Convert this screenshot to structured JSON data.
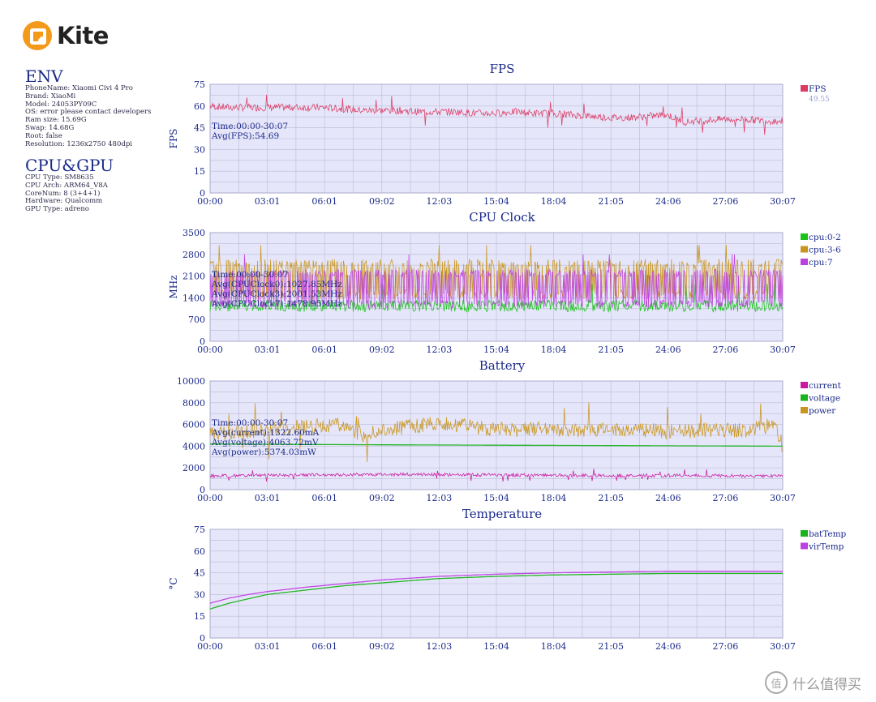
{
  "app": {
    "name": "Kite"
  },
  "env": {
    "title": "ENV",
    "lines": [
      "PhoneName: Xiaomi Civi 4 Pro",
      "Brand: XiaoMi",
      "Model: 24053PY09C",
      "OS: error please contact developers",
      "Ram size: 15.69G",
      "Swap: 14.68G",
      "Root: false",
      "Resolution: 1236x2750 480dpi"
    ]
  },
  "cpugpu": {
    "title": "CPU&GPU",
    "lines": [
      "CPU Type: SM8635",
      "CPU Arch: ARM64_V8A",
      "CoreNum: 8 (3+4+1)",
      "Hardware: Qualcomm",
      "GPU Type: adreno"
    ]
  },
  "watermark": {
    "text": "什么值得买",
    "icon": "zhi-icon"
  },
  "colors": {
    "plot_bg": "#e6e6fa",
    "grid": "#b9b9d8",
    "axis_text": "#1b2a8a",
    "fps": "#dc3c64",
    "cpu02": "#19c319",
    "cpu36": "#c8961e",
    "cpu7": "#bf40e0",
    "current": "#c819a0",
    "voltage": "#19b419",
    "power": "#c8961e",
    "batTemp": "#19b419",
    "virTemp": "#bf40e0"
  },
  "chart_data": [
    {
      "type": "line",
      "title": "FPS",
      "ylabel": "FPS",
      "xlabel": "",
      "ylim": [
        0,
        75
      ],
      "yticks": [
        "0",
        "15",
        "30",
        "45",
        "60",
        "75"
      ],
      "xticks": [
        "00:00",
        "03:01",
        "06:01",
        "09:02",
        "12:03",
        "15:04",
        "18:04",
        "21:05",
        "24:06",
        "27:06",
        "30:07"
      ],
      "grid": true,
      "legend": "right",
      "annotations": [
        "Time:00:00-30:07",
        "Avg(FPS):54.69"
      ],
      "series": [
        {
          "name": "FPS",
          "legend_value": "49.55",
          "color": "#dc3c64",
          "x_min": [
            0,
            60,
            120,
            180,
            240,
            300,
            360,
            420,
            480,
            540,
            600,
            660,
            720,
            780,
            840,
            900,
            960,
            1020,
            1080,
            1140,
            1200,
            1260,
            1320,
            1380,
            1440,
            1500,
            1560,
            1620,
            1680,
            1740,
            1807
          ],
          "values": [
            60,
            59,
            59,
            59,
            59,
            59,
            59,
            58,
            57,
            57,
            57,
            56,
            56,
            56,
            55,
            55,
            56,
            55,
            55,
            54,
            53,
            52,
            52,
            53,
            54,
            49,
            50,
            51,
            51,
            50,
            49.5
          ],
          "noise": 2.5
        }
      ]
    },
    {
      "type": "line",
      "title": "CPU Clock",
      "ylabel": "MHz",
      "xlabel": "",
      "ylim": [
        0,
        3500
      ],
      "yticks": [
        "0",
        "700",
        "1400",
        "2100",
        "2800",
        "3500"
      ],
      "xticks": [
        "00:00",
        "03:01",
        "06:01",
        "09:02",
        "12:03",
        "15:04",
        "18:04",
        "21:05",
        "24:06",
        "27:06",
        "30:07"
      ],
      "grid": true,
      "legend": "right",
      "annotations": [
        "Time:00:00-30:07",
        "Avg(CPUClock0):1027.85MHz",
        "Avg(CPUClock3):2001.53MHz",
        "Avg(CPUClock7):1478.95MHz"
      ],
      "series": [
        {
          "name": "cpu:0-2",
          "color": "#19c319",
          "base": 1030,
          "alt": 1250,
          "noise": 80
        },
        {
          "name": "cpu:3-6",
          "color": "#c8961e",
          "base": 1500,
          "alt": 2500,
          "noise": 150
        },
        {
          "name": "cpu:7",
          "color": "#bf40e0",
          "base": 1200,
          "alt": 2200,
          "noise": 120
        }
      ]
    },
    {
      "type": "line",
      "title": "Battery",
      "ylabel": "",
      "xlabel": "",
      "ylim": [
        0,
        10000
      ],
      "yticks": [
        "0",
        "2000",
        "4000",
        "6000",
        "8000",
        "10000"
      ],
      "xticks": [
        "00:00",
        "03:01",
        "06:01",
        "09:02",
        "12:03",
        "15:04",
        "18:04",
        "21:05",
        "24:06",
        "27:06",
        "30:07"
      ],
      "grid": true,
      "legend": "right",
      "annotations": [
        "Time:00:00-30:07",
        "Avg(current):1322.60mA",
        "Avg(voltage):4063.72mV",
        "Avg(power):5374.03mW"
      ],
      "series": [
        {
          "name": "current",
          "color": "#c819a0",
          "x_min": [
            0,
            300,
            600,
            900,
            1200,
            1500,
            1807
          ],
          "values": [
            1250,
            1350,
            1400,
            1350,
            1300,
            1300,
            1250
          ],
          "noise": 150
        },
        {
          "name": "voltage",
          "color": "#19b419",
          "x_min": [
            0,
            300,
            600,
            900,
            1200,
            1500,
            1807
          ],
          "values": [
            4200,
            4160,
            4120,
            4090,
            4060,
            4030,
            4000
          ],
          "noise": 0
        },
        {
          "name": "power",
          "color": "#c8961e",
          "x_min": [
            0,
            120,
            300,
            420,
            480,
            600,
            720,
            900,
            1080,
            1200,
            1320,
            1440,
            1560,
            1680,
            1780,
            1807
          ],
          "values": [
            5200,
            5400,
            5800,
            6000,
            5000,
            5700,
            6200,
            5500,
            5600,
            5400,
            5600,
            5300,
            5500,
            5400,
            6000,
            4000
          ],
          "noise": 700
        }
      ]
    },
    {
      "type": "line",
      "title": "Temperature",
      "ylabel": "°C",
      "xlabel": "",
      "ylim": [
        0,
        75
      ],
      "yticks": [
        "0",
        "15",
        "30",
        "45",
        "60",
        "75"
      ],
      "xticks": [
        "00:00",
        "03:01",
        "06:01",
        "09:02",
        "12:03",
        "15:04",
        "18:04",
        "21:05",
        "24:06",
        "27:06",
        "30:07"
      ],
      "grid": true,
      "legend": "right",
      "annotations": [],
      "series": [
        {
          "name": "batTemp",
          "color": "#19b419",
          "x_min": [
            0,
            60,
            120,
            180,
            300,
            420,
            540,
            720,
            900,
            1080,
            1260,
            1440,
            1620,
            1807
          ],
          "values": [
            20,
            24,
            27,
            30,
            33,
            36,
            38,
            41,
            42.5,
            43.5,
            44,
            44.5,
            44.5,
            44.5
          ],
          "noise": 0
        },
        {
          "name": "virTemp",
          "color": "#bf40e0",
          "x_min": [
            0,
            60,
            120,
            180,
            300,
            420,
            540,
            720,
            900,
            1080,
            1260,
            1440,
            1620,
            1807
          ],
          "values": [
            24,
            27.5,
            30,
            32,
            35,
            37.5,
            40,
            42.5,
            44,
            45,
            45.5,
            46,
            46,
            46
          ],
          "noise": 0
        }
      ]
    }
  ]
}
